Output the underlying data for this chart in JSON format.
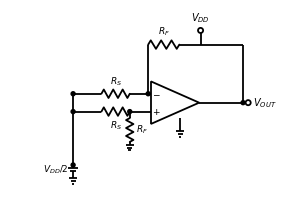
{
  "bg_color": "#ffffff",
  "line_color": "#000000",
  "lw": 1.3,
  "fig_w": 2.85,
  "fig_h": 2.11,
  "dpi": 100,
  "xlim": [
    0,
    10
  ],
  "ylim": [
    0,
    7.4
  ]
}
